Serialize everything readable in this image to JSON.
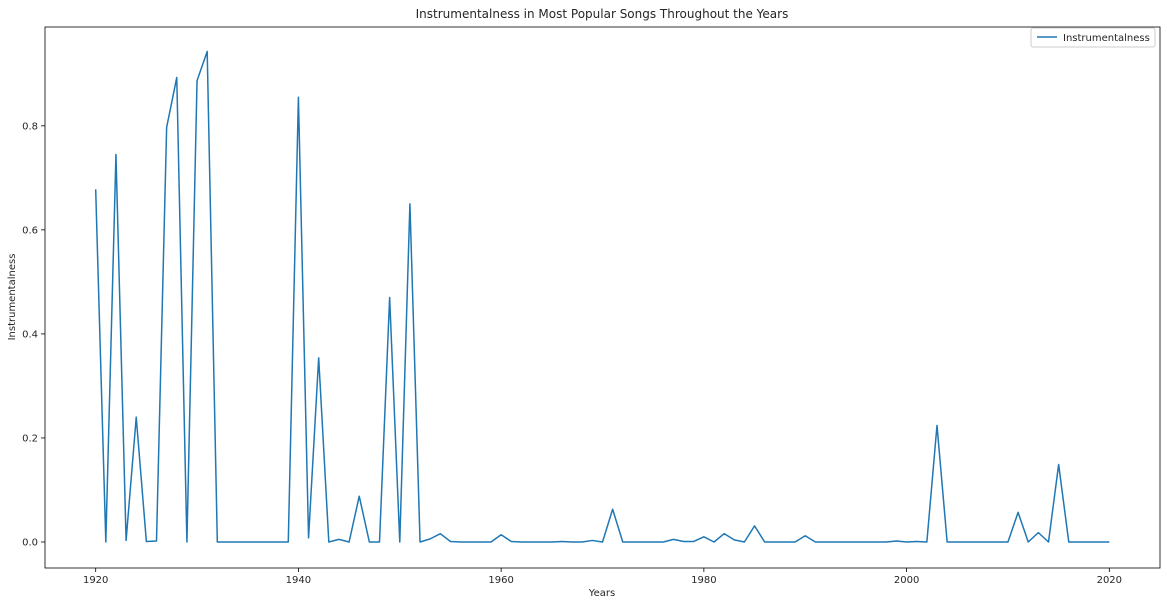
{
  "chart_data": {
    "type": "line",
    "title": "Instrumentalness in Most Popular Songs Throughout the Years",
    "xlabel": "Years",
    "ylabel": "Instrumentalness",
    "xlim": [
      1915,
      2025
    ],
    "ylim": [
      -0.05,
      0.99
    ],
    "xticks": [
      1920,
      1940,
      1960,
      1980,
      2000,
      2020
    ],
    "xtick_labels": [
      "1920",
      "1940",
      "1960",
      "1980",
      "2000",
      "2020"
    ],
    "yticks": [
      0.0,
      0.2,
      0.4,
      0.6,
      0.8
    ],
    "ytick_labels": [
      "0.0",
      "0.2",
      "0.4",
      "0.6",
      "0.8"
    ],
    "grid": false,
    "legend_position": "top-right",
    "colors": {
      "line": "#1f77b4",
      "axis": "#000000",
      "legend_border": "#cccccc"
    },
    "series": [
      {
        "name": "Instrumentalness",
        "x": [
          1920,
          1921,
          1922,
          1923,
          1924,
          1925,
          1926,
          1927,
          1928,
          1929,
          1930,
          1931,
          1932,
          1933,
          1934,
          1935,
          1936,
          1937,
          1938,
          1939,
          1940,
          1941,
          1942,
          1943,
          1944,
          1945,
          1946,
          1947,
          1948,
          1949,
          1950,
          1951,
          1952,
          1953,
          1954,
          1955,
          1956,
          1957,
          1958,
          1959,
          1960,
          1961,
          1962,
          1963,
          1964,
          1965,
          1966,
          1967,
          1968,
          1969,
          1970,
          1971,
          1972,
          1973,
          1974,
          1975,
          1976,
          1977,
          1978,
          1979,
          1980,
          1981,
          1982,
          1983,
          1984,
          1985,
          1986,
          1987,
          1988,
          1989,
          1990,
          1991,
          1992,
          1993,
          1994,
          1995,
          1996,
          1997,
          1998,
          1999,
          2000,
          2001,
          2002,
          2003,
          2004,
          2005,
          2006,
          2007,
          2008,
          2009,
          2010,
          2011,
          2012,
          2013,
          2014,
          2015,
          2016,
          2017,
          2018,
          2019,
          2020
        ],
        "values": [
          0.678,
          0.0,
          0.745,
          0.003,
          0.24,
          0.001,
          0.002,
          0.797,
          0.893,
          0.0,
          0.887,
          0.943,
          0.0,
          0.0,
          0.0,
          0.0,
          0.0,
          0.0,
          0.0,
          0.0,
          0.855,
          0.008,
          0.354,
          0.0,
          0.005,
          0.0,
          0.088,
          0.0,
          0.0,
          0.47,
          0.0,
          0.65,
          0.0,
          0.006,
          0.016,
          0.001,
          0.0,
          0.0,
          0.0,
          0.0,
          0.014,
          0.001,
          0.0,
          0.0,
          0.0,
          0.0,
          0.001,
          0.0,
          0.0,
          0.003,
          0.0,
          0.063,
          0.0,
          0.0,
          0.0,
          0.0,
          0.0,
          0.005,
          0.001,
          0.001,
          0.01,
          0.0,
          0.016,
          0.004,
          0.0,
          0.031,
          0.0,
          0.0,
          0.0,
          0.0,
          0.012,
          0.0,
          0.0,
          0.0,
          0.0,
          0.0,
          0.0,
          0.0,
          0.0,
          0.002,
          0.0,
          0.001,
          0.0,
          0.224,
          0.0,
          0.0,
          0.0,
          0.0,
          0.0,
          0.0,
          0.0,
          0.057,
          0.0,
          0.018,
          0.0,
          0.149,
          0.0,
          0.0,
          0.0,
          0.0,
          0.0
        ]
      }
    ]
  }
}
